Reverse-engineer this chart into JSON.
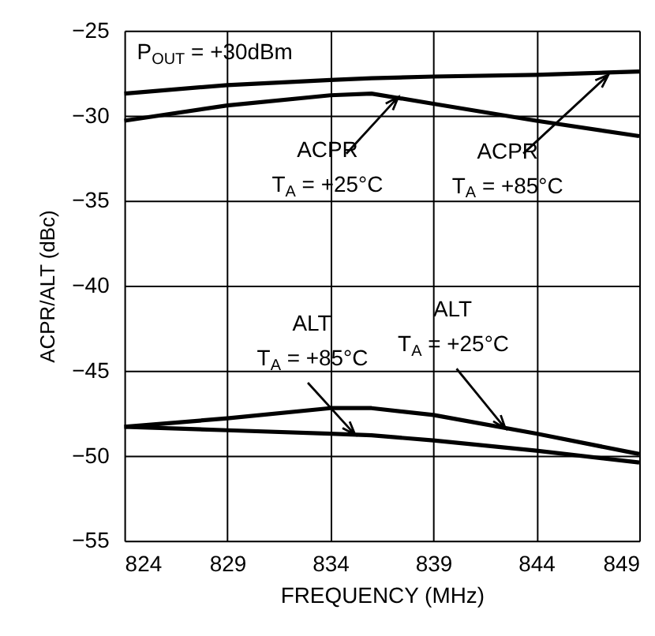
{
  "chart_data": {
    "type": "line",
    "xlabel": "FREQUENCY (MHz)",
    "ylabel": "ACPR/ALT (dBc)",
    "x": [
      824,
      829,
      834,
      836,
      839,
      844,
      849
    ],
    "series": [
      {
        "color": "#000000",
        "values": [
          -28.7,
          -28.2,
          -27.9,
          -27.8,
          -27.7,
          -27.6,
          -27.4
        ]
      },
      {
        "color": "#000000",
        "values": [
          -30.3,
          -29.4,
          -28.8,
          -28.7,
          -29.3,
          -30.3,
          -31.2
        ]
      },
      {
        "color": "#000000",
        "values": [
          -48.3,
          -47.8,
          -47.2,
          -47.2,
          -47.6,
          -48.7,
          -49.9
        ]
      },
      {
        "color": "#000000",
        "values": [
          -48.3,
          -48.5,
          -48.7,
          -48.8,
          -49.1,
          -49.7,
          -50.4
        ]
      }
    ],
    "xlim": [
      824,
      849
    ],
    "xticks": [
      824,
      829,
      834,
      839,
      844,
      849
    ],
    "ylim": [
      -55,
      -25
    ],
    "yticks": [
      -55,
      -50,
      -45,
      -40,
      -35,
      -30,
      -25
    ],
    "grid": true,
    "line_style": "solid",
    "marker": "none",
    "annotations": [
      "P$_{OUT}$ = +30dBm",
      {
        "text": "ACPR\nT$_{A}$ = +25°C",
        "x": 837.3,
        "y": -28.9
      },
      {
        "text": "ACPR\nT$_{A}$ = +85°C",
        "x": 847.5,
        "y": -27.6
      },
      {
        "text": "ALT\nT$_{A}$ = +85°C",
        "x": 835.2,
        "y": -48.76
      },
      {
        "text": "ALT\nT$_{A}$ = +25°C",
        "x": 842.5,
        "y": -48.4
      }
    ]
  }
}
